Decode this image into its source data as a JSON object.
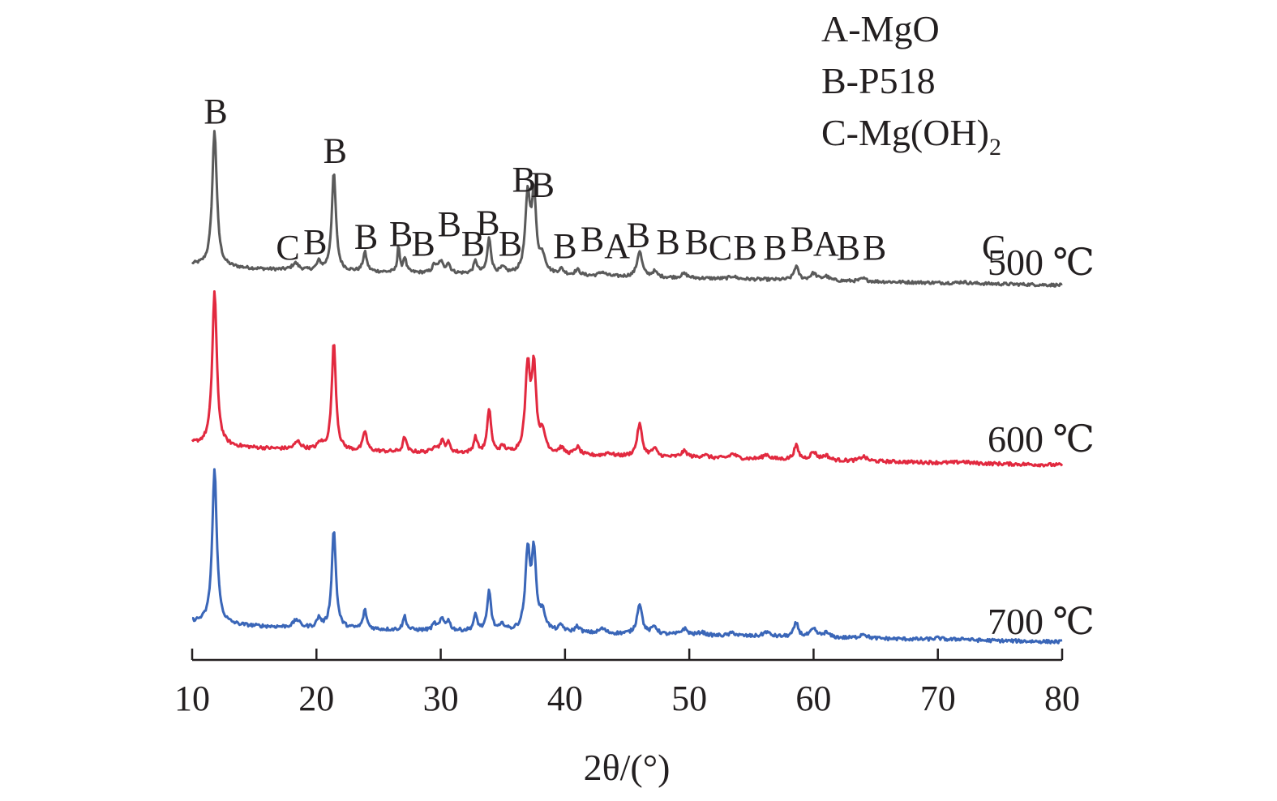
{
  "chart_data": {
    "type": "line",
    "title": "",
    "xlabel": "2θ/(°)",
    "xlim": [
      10,
      80
    ],
    "xticks": [
      "10",
      "20",
      "30",
      "40",
      "50",
      "60",
      "70",
      "80"
    ],
    "y_axis_visible": false,
    "legend": [
      {
        "text": "A-MgO"
      },
      {
        "text": "B-P518"
      },
      {
        "main": "C-Mg(OH)",
        "sub": "2"
      }
    ],
    "legend_position": "top-right",
    "series": [
      {
        "name": "500 ℃",
        "color": "#5a5a5a",
        "baseline_start": 0.08,
        "baseline_end": -0.04,
        "peaks": [
          [
            11.8,
            1.0,
            0.22
          ],
          [
            18.3,
            0.05,
            0.3
          ],
          [
            20.2,
            0.06,
            0.2
          ],
          [
            21.4,
            0.72,
            0.2
          ],
          [
            23.9,
            0.14,
            0.18
          ],
          [
            26.6,
            0.2,
            0.1
          ],
          [
            27.1,
            0.11,
            0.15
          ],
          [
            29.5,
            0.06,
            0.2
          ],
          [
            30.0,
            0.08,
            0.2
          ],
          [
            30.6,
            0.07,
            0.2
          ],
          [
            32.8,
            0.09,
            0.18
          ],
          [
            33.9,
            0.26,
            0.18
          ],
          [
            35.0,
            0.04,
            0.25
          ],
          [
            37.0,
            0.56,
            0.23
          ],
          [
            37.5,
            0.55,
            0.21
          ],
          [
            38.2,
            0.12,
            0.3
          ],
          [
            39.7,
            0.04,
            0.25
          ],
          [
            41.0,
            0.04,
            0.25
          ],
          [
            43.0,
            0.03,
            0.3
          ],
          [
            46.0,
            0.19,
            0.24
          ],
          [
            47.2,
            0.04,
            0.25
          ],
          [
            49.6,
            0.03,
            0.3
          ],
          [
            53.5,
            0.02,
            0.3
          ],
          [
            58.6,
            0.1,
            0.22
          ],
          [
            60.0,
            0.05,
            0.3
          ],
          [
            61.0,
            0.03,
            0.3
          ],
          [
            64.0,
            0.02,
            0.3
          ],
          [
            72.0,
            0.01,
            0.4
          ]
        ]
      },
      {
        "name": "600 ℃",
        "color": "#e2293f",
        "baseline_start": 0.07,
        "baseline_end": -0.04,
        "peaks": [
          [
            11.8,
            1.0,
            0.22
          ],
          [
            18.5,
            0.05,
            0.3
          ],
          [
            20.3,
            0.04,
            0.25
          ],
          [
            21.4,
            0.7,
            0.2
          ],
          [
            23.9,
            0.13,
            0.18
          ],
          [
            27.1,
            0.1,
            0.16
          ],
          [
            29.5,
            0.04,
            0.2
          ],
          [
            30.1,
            0.07,
            0.2
          ],
          [
            30.6,
            0.06,
            0.2
          ],
          [
            32.8,
            0.1,
            0.18
          ],
          [
            33.9,
            0.29,
            0.18
          ],
          [
            35.0,
            0.04,
            0.25
          ],
          [
            37.0,
            0.55,
            0.23
          ],
          [
            37.5,
            0.53,
            0.21
          ],
          [
            38.2,
            0.12,
            0.3
          ],
          [
            39.7,
            0.04,
            0.25
          ],
          [
            41.0,
            0.05,
            0.25
          ],
          [
            43.5,
            0.02,
            0.3
          ],
          [
            46.0,
            0.21,
            0.24
          ],
          [
            47.2,
            0.05,
            0.25
          ],
          [
            49.6,
            0.04,
            0.3
          ],
          [
            51.2,
            0.02,
            0.3
          ],
          [
            53.5,
            0.03,
            0.3
          ],
          [
            56.2,
            0.03,
            0.3
          ],
          [
            58.6,
            0.09,
            0.22
          ],
          [
            60.0,
            0.05,
            0.3
          ],
          [
            61.0,
            0.03,
            0.3
          ],
          [
            64.0,
            0.03,
            0.3
          ],
          [
            72.0,
            0.01,
            0.4
          ]
        ]
      },
      {
        "name": "700 ℃",
        "color": "#3a66b8",
        "baseline_start": 0.07,
        "baseline_end": -0.03,
        "peaks": [
          [
            11.8,
            1.0,
            0.22
          ],
          [
            18.4,
            0.05,
            0.3
          ],
          [
            20.2,
            0.06,
            0.2
          ],
          [
            21.4,
            0.64,
            0.2
          ],
          [
            23.9,
            0.12,
            0.18
          ],
          [
            27.1,
            0.09,
            0.16
          ],
          [
            29.5,
            0.04,
            0.2
          ],
          [
            30.1,
            0.07,
            0.2
          ],
          [
            30.6,
            0.06,
            0.2
          ],
          [
            32.8,
            0.1,
            0.18
          ],
          [
            33.9,
            0.26,
            0.18
          ],
          [
            35.0,
            0.04,
            0.25
          ],
          [
            37.0,
            0.5,
            0.23
          ],
          [
            37.5,
            0.48,
            0.21
          ],
          [
            38.2,
            0.11,
            0.3
          ],
          [
            39.7,
            0.04,
            0.25
          ],
          [
            41.0,
            0.04,
            0.25
          ],
          [
            43.0,
            0.03,
            0.3
          ],
          [
            46.0,
            0.2,
            0.24
          ],
          [
            47.2,
            0.05,
            0.25
          ],
          [
            49.6,
            0.04,
            0.3
          ],
          [
            51.0,
            0.02,
            0.3
          ],
          [
            53.5,
            0.02,
            0.3
          ],
          [
            56.2,
            0.03,
            0.3
          ],
          [
            58.6,
            0.09,
            0.22
          ],
          [
            60.0,
            0.05,
            0.3
          ],
          [
            61.0,
            0.03,
            0.3
          ],
          [
            64.0,
            0.03,
            0.3
          ],
          [
            70.0,
            0.01,
            0.4
          ],
          [
            72.0,
            0.01,
            0.4
          ]
        ]
      }
    ],
    "annotations": [
      {
        "text": "B",
        "x": 11.9,
        "y": 1.15
      },
      {
        "text": "C",
        "x": 17.7,
        "y": 0.15
      },
      {
        "text": "B",
        "x": 19.9,
        "y": 0.19
      },
      {
        "text": "B",
        "x": 21.5,
        "y": 0.86
      },
      {
        "text": "B",
        "x": 24.0,
        "y": 0.23
      },
      {
        "text": "B",
        "x": 26.8,
        "y": 0.25
      },
      {
        "text": "B",
        "x": 28.6,
        "y": 0.18
      },
      {
        "text": "B",
        "x": 30.7,
        "y": 0.32
      },
      {
        "text": "B",
        "x": 32.6,
        "y": 0.18
      },
      {
        "text": "B",
        "x": 33.8,
        "y": 0.33
      },
      {
        "text": "B",
        "x": 35.6,
        "y": 0.18
      },
      {
        "text": "B",
        "x": 36.7,
        "y": 0.65
      },
      {
        "text": "B",
        "x": 38.2,
        "y": 0.61
      },
      {
        "text": "B",
        "x": 40.0,
        "y": 0.16
      },
      {
        "text": "B",
        "x": 42.2,
        "y": 0.21
      },
      {
        "text": "A",
        "x": 44.2,
        "y": 0.16
      },
      {
        "text": "B",
        "x": 45.9,
        "y": 0.24
      },
      {
        "text": "B",
        "x": 48.3,
        "y": 0.19
      },
      {
        "text": "B",
        "x": 50.6,
        "y": 0.19
      },
      {
        "text": "C",
        "x": 52.5,
        "y": 0.15
      },
      {
        "text": "B",
        "x": 54.5,
        "y": 0.15
      },
      {
        "text": "B",
        "x": 56.9,
        "y": 0.15
      },
      {
        "text": "B",
        "x": 59.1,
        "y": 0.21
      },
      {
        "text": "A",
        "x": 61.0,
        "y": 0.18
      },
      {
        "text": "B",
        "x": 62.8,
        "y": 0.15
      },
      {
        "text": "B",
        "x": 64.9,
        "y": 0.15
      },
      {
        "text": "C",
        "x": 74.5,
        "y": 0.15
      }
    ]
  }
}
